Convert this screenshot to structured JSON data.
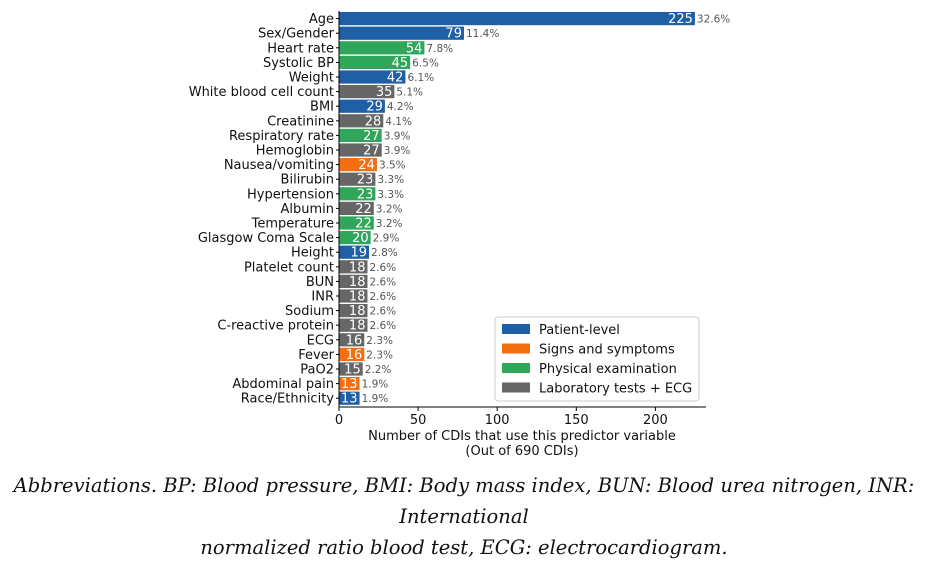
{
  "chart_data": {
    "type": "bar",
    "orientation": "horizontal",
    "categories": [
      "Age",
      "Sex/Gender",
      "Heart rate",
      "Systolic BP",
      "Weight",
      "White blood cell count",
      "BMI",
      "Creatinine",
      "Respiratory rate",
      "Hemoglobin",
      "Nausea/vomiting",
      "Bilirubin",
      "Hypertension",
      "Albumin",
      "Temperature",
      "Glasgow Coma Scale",
      "Height",
      "Platelet count",
      "BUN",
      "INR",
      "Sodium",
      "C-reactive protein",
      "ECG",
      "Fever",
      "PaO2",
      "Abdominal pain",
      "Race/Ethnicity"
    ],
    "values": [
      225,
      79,
      54,
      45,
      42,
      35,
      29,
      28,
      27,
      27,
      24,
      23,
      23,
      22,
      22,
      20,
      19,
      18,
      18,
      18,
      18,
      18,
      16,
      16,
      15,
      13,
      13
    ],
    "percent_labels": [
      "32.6%",
      "11.4%",
      "7.8%",
      "6.5%",
      "6.1%",
      "5.1%",
      "4.2%",
      "4.1%",
      "3.9%",
      "3.9%",
      "3.5%",
      "3.3%",
      "3.3%",
      "3.2%",
      "3.2%",
      "2.9%",
      "2.8%",
      "2.6%",
      "2.6%",
      "2.6%",
      "2.6%",
      "2.6%",
      "2.3%",
      "2.3%",
      "2.2%",
      "1.9%",
      "1.9%"
    ],
    "groups": [
      "Patient-level",
      "Patient-level",
      "Physical examination",
      "Physical examination",
      "Patient-level",
      "Laboratory tests + ECG",
      "Patient-level",
      "Laboratory tests + ECG",
      "Physical examination",
      "Laboratory tests + ECG",
      "Signs and symptoms",
      "Laboratory tests + ECG",
      "Physical examination",
      "Laboratory tests + ECG",
      "Physical examination",
      "Physical examination",
      "Patient-level",
      "Laboratory tests + ECG",
      "Laboratory tests + ECG",
      "Laboratory tests + ECG",
      "Laboratory tests + ECG",
      "Laboratory tests + ECG",
      "Laboratory tests + ECG",
      "Signs and symptoms",
      "Laboratory tests + ECG",
      "Signs and symptoms",
      "Patient-level"
    ],
    "xlabel_line1": "Number of CDIs that use this predictor variable",
    "xlabel_line2": "(Out of 690 CDIs)",
    "ylabel": "",
    "xlim": [
      0,
      232
    ],
    "xticks": [
      0,
      50,
      100,
      150,
      200
    ],
    "grid": false,
    "legend": {
      "position": "bottom-right",
      "entries": [
        {
          "name": "Patient-level",
          "color": "#1f5fa6"
        },
        {
          "name": "Signs and symptoms",
          "color": "#f36f12"
        },
        {
          "name": "Physical examination",
          "color": "#2fa65a"
        },
        {
          "name": "Laboratory tests + ECG",
          "color": "#666666"
        }
      ]
    }
  },
  "caption": {
    "line1": "Abbreviations. BP: Blood pressure, BMI: Body mass index, BUN: Blood urea nitrogen, INR: International",
    "line2": "normalized ratio blood test, ECG: electrocardiogram."
  }
}
